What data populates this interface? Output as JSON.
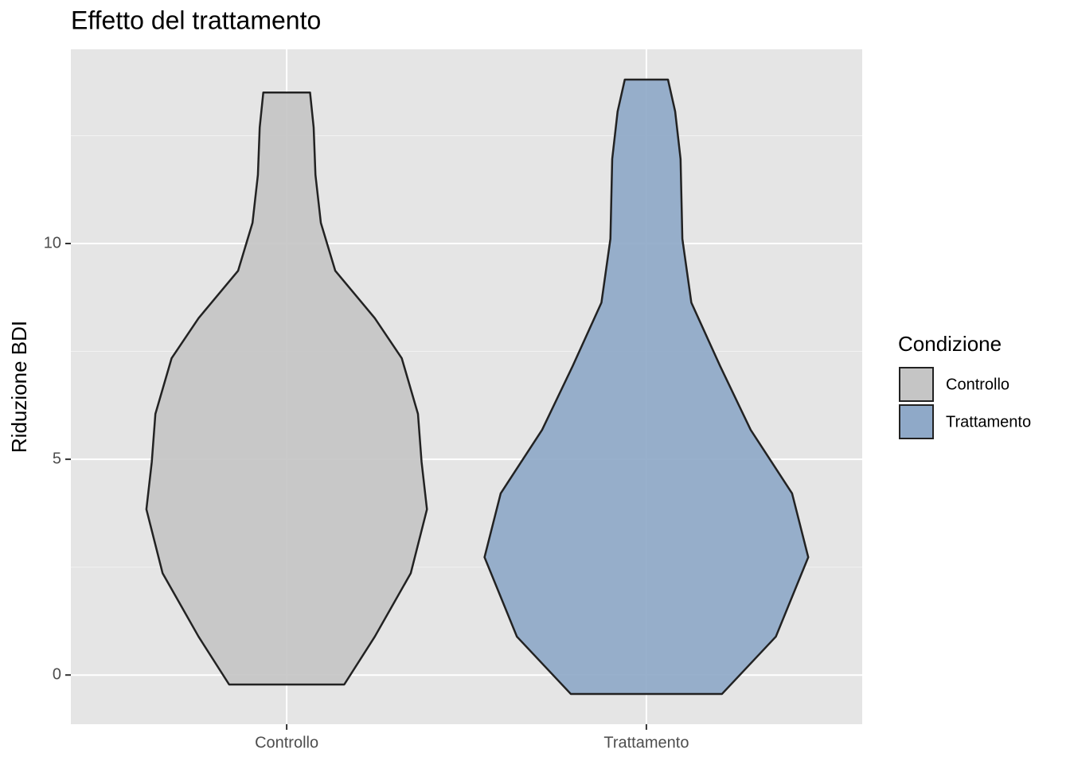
{
  "chart_data": {
    "type": "violin",
    "title": "Effetto del trattamento",
    "y_label": "Riduzione BDI",
    "legend_title": "Condizione",
    "legend_position": "right",
    "categories": [
      "Controllo",
      "Trattamento"
    ],
    "series": [
      {
        "name": "Controllo",
        "color": "#c5c5c5",
        "y": [
          -0.22,
          0.89,
          2.36,
          3.84,
          4.94,
          6.05,
          7.34,
          8.27,
          9.37,
          10.48,
          11.59,
          12.69,
          13.5
        ],
        "widths": [
          0.32,
          0.49,
          0.69,
          0.78,
          0.75,
          0.73,
          0.64,
          0.49,
          0.27,
          0.19,
          0.16,
          0.15,
          0.13
        ]
      },
      {
        "name": "Trattamento",
        "color": "#8fa9c8",
        "y": [
          -0.44,
          0.89,
          2.73,
          4.21,
          5.68,
          7.16,
          8.63,
          10.11,
          11.96,
          13.06,
          13.8
        ],
        "widths": [
          0.42,
          0.72,
          0.9,
          0.81,
          0.58,
          0.41,
          0.25,
          0.2,
          0.19,
          0.16,
          0.12
        ]
      }
    ],
    "ylim": [
      -1.14,
      14.5
    ],
    "yticks": [
      0,
      5,
      10
    ],
    "y_minor_grid": [
      2.5,
      7.5,
      12.5
    ],
    "grid": true
  }
}
